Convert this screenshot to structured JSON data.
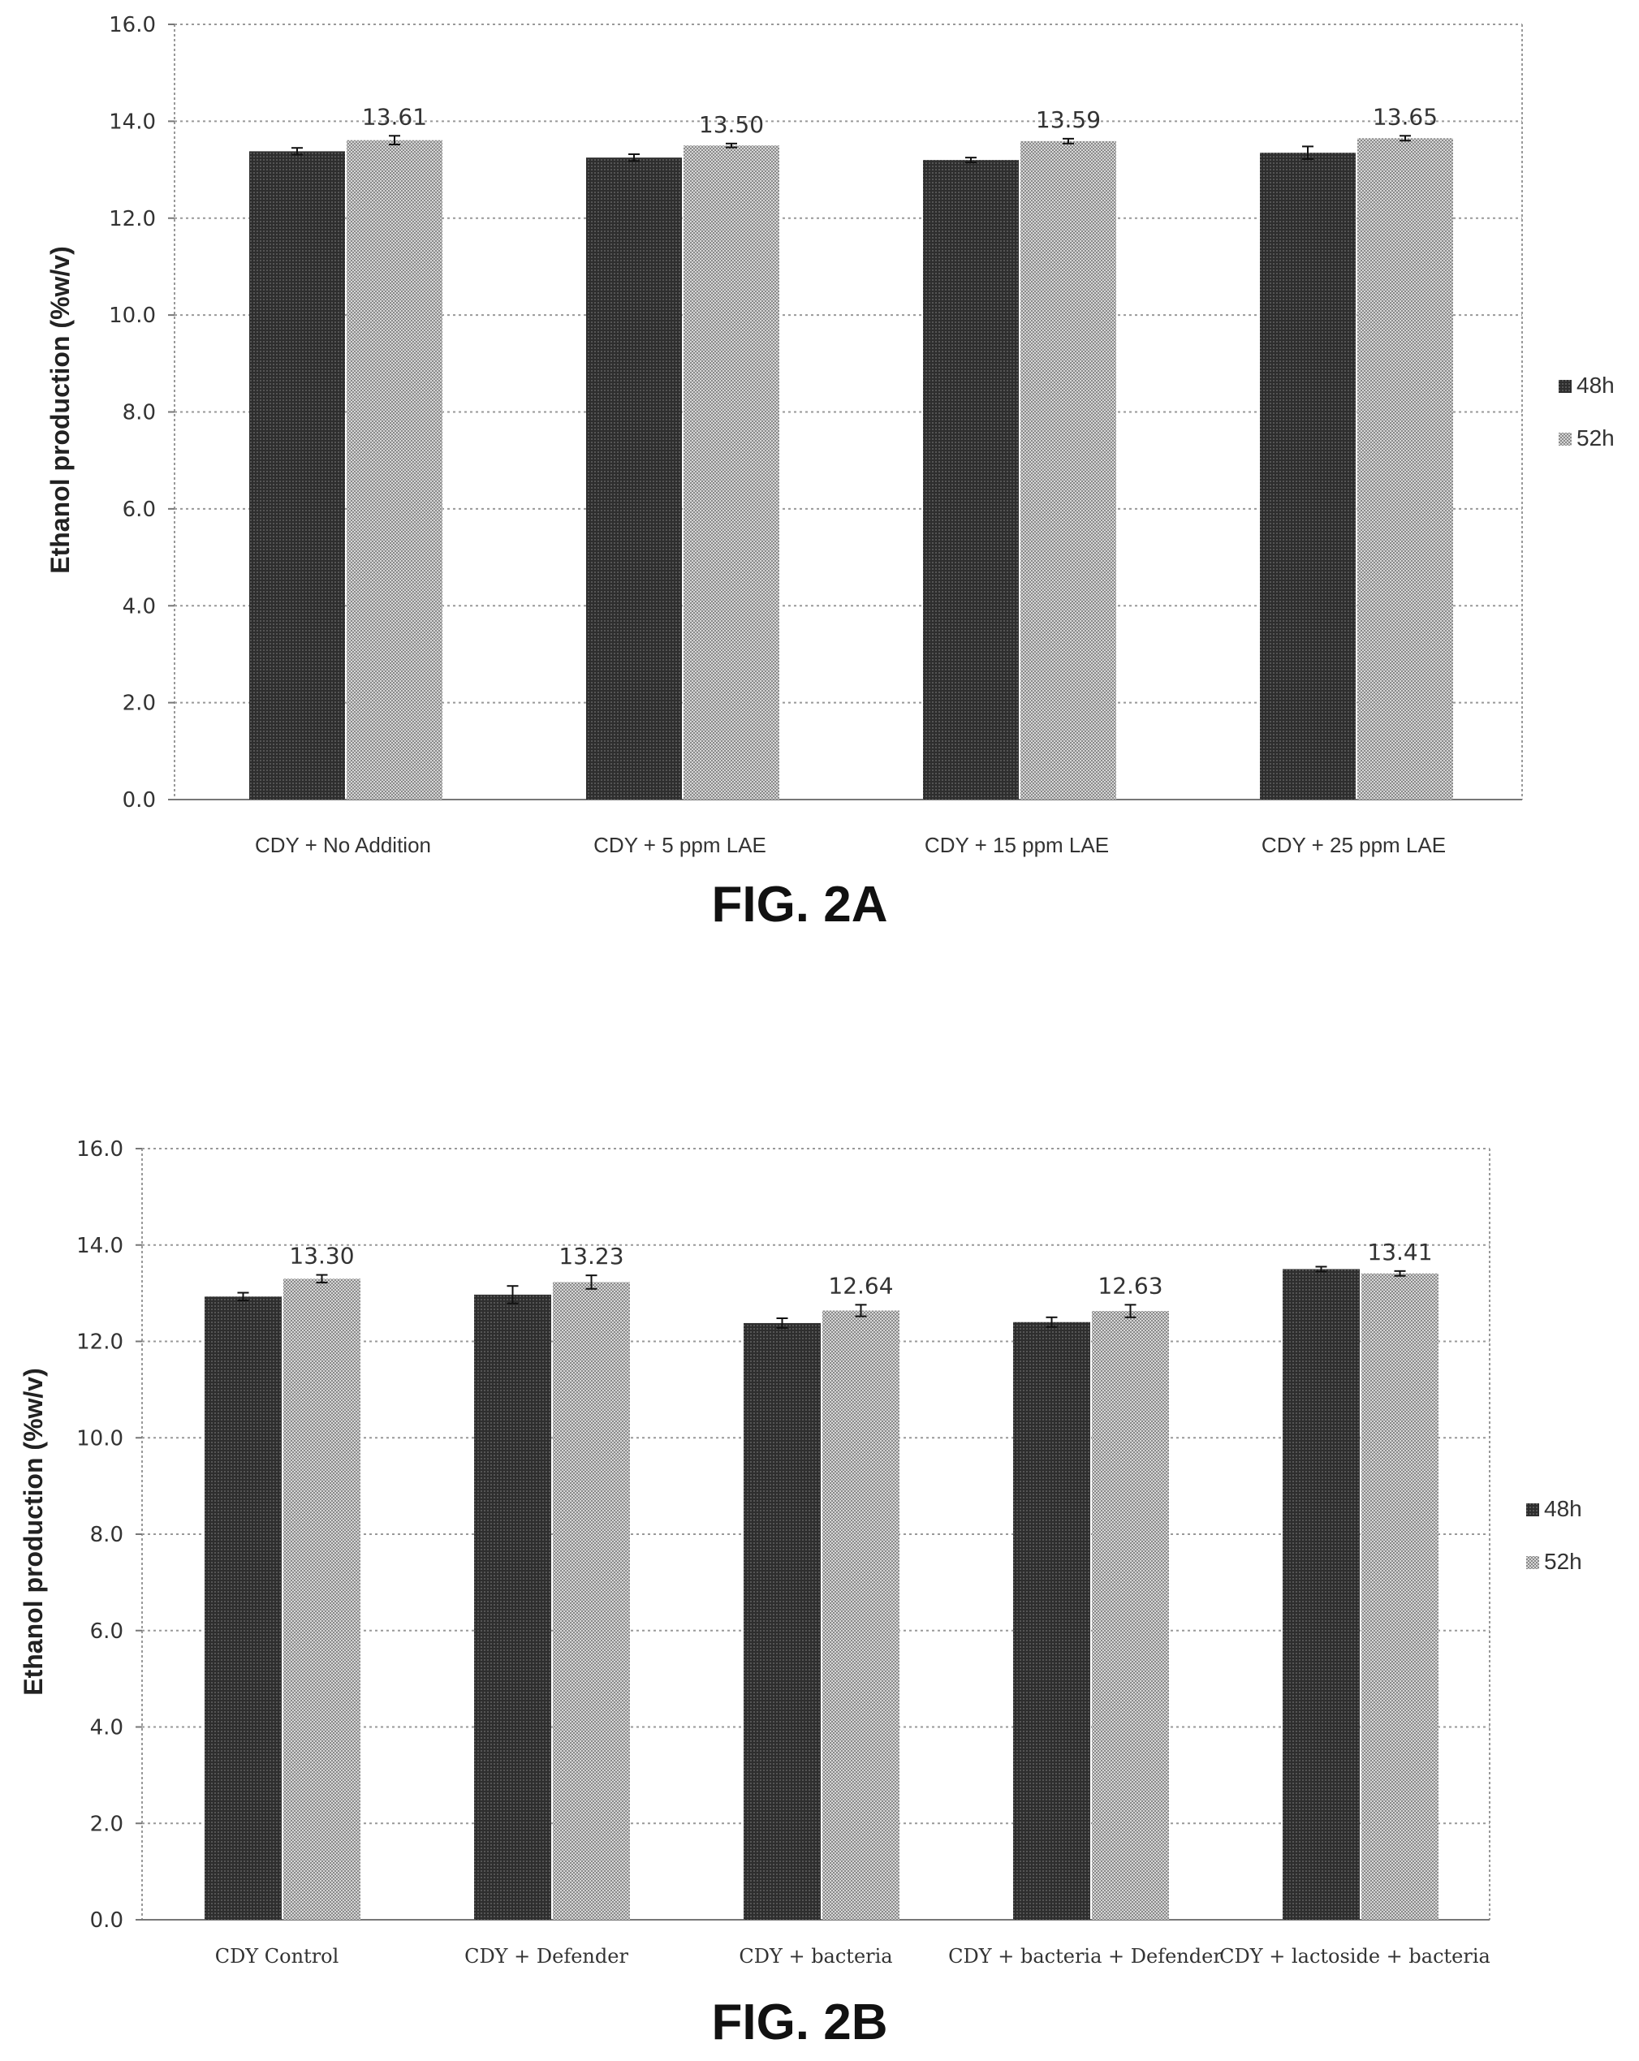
{
  "chart_data": [
    {
      "type": "bar",
      "caption": "FIG. 2A",
      "ylabel": "Ethanol production (%w/v)",
      "ylim": [
        0,
        16
      ],
      "yticks": [
        "0.0",
        "2.0",
        "4.0",
        "6.0",
        "8.0",
        "10.0",
        "12.0",
        "14.0",
        "16.0"
      ],
      "grid": true,
      "legend_position": "right",
      "categories": [
        "CDY + No Addition",
        "CDY + 5 ppm LAE",
        "CDY + 15 ppm LAE",
        "CDY + 25 ppm LAE"
      ],
      "series": [
        {
          "name": "48h",
          "values": [
            13.38,
            13.25,
            13.2,
            13.35
          ],
          "errors": [
            0.07,
            0.07,
            0.05,
            0.13
          ],
          "color": "#3a3a3a"
        },
        {
          "name": "52h",
          "values": [
            13.61,
            13.5,
            13.59,
            13.65
          ],
          "errors": [
            0.09,
            0.04,
            0.05,
            0.05
          ],
          "color": "#bdbdbd",
          "data_labels": [
            "13.61",
            "13.50",
            "13.59",
            "13.65"
          ]
        }
      ]
    },
    {
      "type": "bar",
      "caption": "FIG. 2B",
      "ylabel": "Ethanol production (%w/v)",
      "ylim": [
        0,
        16
      ],
      "yticks": [
        "0.0",
        "2.0",
        "4.0",
        "6.0",
        "8.0",
        "10.0",
        "12.0",
        "14.0",
        "16.0"
      ],
      "grid": true,
      "legend_position": "right",
      "categories": [
        "CDY Control",
        "CDY + Defender",
        "CDY + bacteria",
        "CDY + bacteria + Defender",
        "CDY + lactoside + bacteria"
      ],
      "series": [
        {
          "name": "48h",
          "values": [
            12.93,
            12.97,
            12.38,
            12.4,
            13.5
          ],
          "errors": [
            0.08,
            0.18,
            0.1,
            0.1,
            0.05
          ],
          "color": "#3a3a3a"
        },
        {
          "name": "52h",
          "values": [
            13.3,
            13.23,
            12.64,
            12.63,
            13.41
          ],
          "errors": [
            0.08,
            0.14,
            0.12,
            0.13,
            0.05
          ],
          "color": "#bdbdbd",
          "data_labels": [
            "13.30",
            "13.23",
            "12.64",
            "12.63",
            "13.41"
          ]
        }
      ]
    }
  ]
}
